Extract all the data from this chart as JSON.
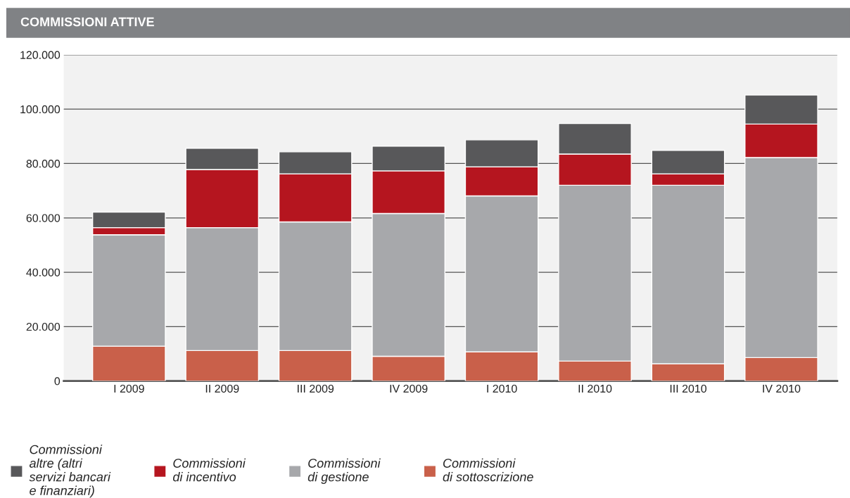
{
  "chart_data": {
    "type": "bar",
    "title": "COMMISSIONI ATTIVE",
    "stacked": true,
    "categories": [
      "I 2009",
      "II 2009",
      "III 2009",
      "IV 2009",
      "I 2010",
      "II 2010",
      "III 2010",
      "IV 2010"
    ],
    "series": [
      {
        "name": "Commissioni\ndi sottoscrizione",
        "color": "#c9604a",
        "values": [
          12800,
          11200,
          11200,
          9100,
          10700,
          7300,
          6300,
          8600
        ]
      },
      {
        "name": "Commissioni\ndi gestione",
        "color": "#a7a8ab",
        "values": [
          41000,
          45200,
          47300,
          52500,
          57400,
          64700,
          65700,
          73600
        ]
      },
      {
        "name": "Commissioni\ndi incentivo",
        "color": "#b5151f",
        "values": [
          2600,
          21400,
          17700,
          15700,
          10700,
          11500,
          4200,
          12300
        ]
      },
      {
        "name": "Commissioni\naltre (altri\nservizi bancari\ne finanziari)",
        "color": "#58585a",
        "values": [
          5700,
          7800,
          8100,
          9100,
          9900,
          11200,
          8600,
          10700
        ]
      }
    ],
    "ylim": [
      0,
      120000
    ],
    "yticks": [
      {
        "value": 0,
        "label": "0"
      },
      {
        "value": 20000,
        "label": "20.000"
      },
      {
        "value": 40000,
        "label": "40.000"
      },
      {
        "value": 60000,
        "label": "60.000"
      },
      {
        "value": 80000,
        "label": "80.000"
      },
      {
        "value": 100000,
        "label": "100.000"
      },
      {
        "value": 120000,
        "label": "120.000"
      }
    ],
    "grid": "y",
    "legend": "bottom"
  }
}
